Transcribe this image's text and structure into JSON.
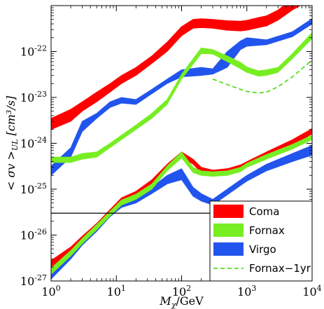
{
  "chart_data": {
    "type": "area",
    "x_scale": "log",
    "y_scale": "log",
    "xlim": [
      1,
      10000
    ],
    "ylim": [
      1e-27,
      1e-21
    ],
    "xlabel_main": "M",
    "xlabel_sub": "χ",
    "xlabel_rest": "/GeV",
    "ylabel": "< σv >",
    "ylabel_sub": "UL",
    "ylabel_units": "[cm³/s]",
    "x_ticks": [
      {
        "value": 1,
        "base": "10",
        "exp": "0"
      },
      {
        "value": 10,
        "base": "10",
        "exp": "1"
      },
      {
        "value": 100,
        "base": "10",
        "exp": "2"
      },
      {
        "value": 1000,
        "base": "10",
        "exp": "3"
      },
      {
        "value": 10000,
        "base": "10",
        "exp": "4"
      }
    ],
    "y_ticks": [
      {
        "value": 1e-27,
        "base": "10",
        "exp": "-27"
      },
      {
        "value": 1e-26,
        "base": "10",
        "exp": "-26"
      },
      {
        "value": 1e-25,
        "base": "10",
        "exp": "-25"
      },
      {
        "value": 1e-24,
        "base": "10",
        "exp": "-24"
      },
      {
        "value": 1e-23,
        "base": "10",
        "exp": "-23"
      },
      {
        "value": 1e-22,
        "base": "10",
        "exp": "-22"
      }
    ],
    "hline": {
      "y": 3e-26,
      "color": "#000000"
    },
    "legend": {
      "position": "bottom-right",
      "entries": [
        {
          "label": "Coma",
          "color": "#ff0000",
          "style": "band"
        },
        {
          "label": "Fornax",
          "color": "#77ee22",
          "style": "band"
        },
        {
          "label": "Virgo",
          "color": "#2255ee",
          "style": "band"
        },
        {
          "label": "Fornax−1yr",
          "color": "#55dd22",
          "style": "dashed"
        }
      ]
    },
    "series": [
      {
        "id": "virgo-upper",
        "color": "#2255ee",
        "type": "band",
        "x": [
          1,
          2,
          3,
          5,
          8,
          12,
          20,
          35,
          60,
          100,
          200,
          300,
          500,
          800,
          1000,
          2000,
          5000,
          10000
        ],
        "lo": [
          2e-25,
          5e-25,
          1.8e-24,
          3.5e-24,
          6e-24,
          7.5e-24,
          7e-24,
          1.2e-23,
          2e-23,
          2.8e-23,
          3e-23,
          3.2e-23,
          4.5e-23,
          1.1e-22,
          1.3e-22,
          1.4e-22,
          2.1e-22,
          4e-22
        ],
        "hi": [
          3.2e-25,
          8e-25,
          3e-24,
          4.5e-24,
          8e-24,
          1e-23,
          9e-24,
          1.5e-23,
          2.5e-23,
          4e-23,
          4.5e-23,
          4.2e-23,
          1e-22,
          1.7e-22,
          2e-22,
          1.8e-22,
          2.7e-22,
          5.2e-22
        ]
      },
      {
        "id": "fornax-upper",
        "color": "#77ee22",
        "type": "band",
        "x": [
          1,
          2,
          3,
          5,
          8,
          12,
          20,
          35,
          60,
          100,
          200,
          300,
          500,
          800,
          1000,
          1500,
          2000,
          3000,
          5000,
          10000
        ],
        "lo": [
          3.8e-25,
          3.8e-25,
          4.5e-25,
          5e-25,
          8e-25,
          1.2e-24,
          2e-24,
          3.5e-24,
          7e-24,
          2.5e-23,
          9e-23,
          8.8e-23,
          6e-23,
          4.2e-23,
          3.5e-23,
          2.9e-23,
          3e-23,
          3.5e-23,
          7e-23,
          1.9e-22
        ],
        "hi": [
          5e-25,
          5e-25,
          6e-25,
          6.5e-25,
          1e-24,
          1.5e-24,
          2.5e-24,
          4.5e-24,
          9e-24,
          3.2e-23,
          1.2e-22,
          1.1e-22,
          8e-23,
          5.8e-23,
          4.6e-23,
          3.8e-23,
          4e-23,
          4.5e-23,
          9e-23,
          2.6e-22
        ]
      },
      {
        "id": "coma-upper",
        "color": "#ff0000",
        "type": "band",
        "x": [
          1,
          2,
          3,
          5,
          8,
          12,
          20,
          35,
          60,
          100,
          150,
          200,
          300,
          500,
          800,
          1000,
          1500,
          2000,
          3000,
          5000,
          10000
        ],
        "lo": [
          2e-24,
          3e-24,
          5e-24,
          8e-24,
          1.3e-23,
          2e-23,
          3e-23,
          5.5e-23,
          1e-22,
          2.2e-22,
          3.2e-22,
          3.3e-22,
          3.2e-22,
          2.9e-22,
          2.8e-22,
          2.9e-22,
          3.3e-22,
          3.6e-22,
          4.8e-22,
          8e-22,
          1.4e-21
        ],
        "hi": [
          3.5e-24,
          5.5e-24,
          8e-24,
          1.3e-23,
          2e-23,
          3e-23,
          4.5e-23,
          8e-23,
          1.6e-22,
          3.5e-22,
          5e-22,
          5.2e-22,
          5e-22,
          4.7e-22,
          4.6e-22,
          4.8e-22,
          5.5e-22,
          6e-22,
          8e-22,
          1.4e-21,
          2.2e-21
        ]
      },
      {
        "id": "virgo-lower",
        "color": "#2255ee",
        "type": "band",
        "x": [
          1,
          2,
          3,
          5,
          8,
          12,
          20,
          35,
          60,
          100,
          150,
          200,
          300,
          500,
          800,
          1000,
          2000,
          5000,
          10000
        ],
        "lo": [
          1.1e-27,
          3e-27,
          6e-27,
          1.2e-26,
          2.5e-26,
          4e-26,
          5e-26,
          8e-26,
          1.3e-25,
          1.6e-25,
          7e-26,
          5.5e-26,
          4.5e-26,
          7.5e-26,
          1.2e-25,
          1.5e-25,
          2.5e-25,
          4e-25,
          5.5e-25
        ],
        "hi": [
          1.7e-27,
          4.2e-27,
          8.5e-27,
          1.7e-26,
          3.4e-26,
          5.5e-26,
          6.8e-26,
          1.1e-25,
          2e-25,
          2.8e-25,
          1.1e-25,
          8e-26,
          6e-26,
          1e-25,
          1.6e-25,
          2e-25,
          3.5e-25,
          6e-25,
          9e-25
        ]
      },
      {
        "id": "coma-lower",
        "color": "#ff0000",
        "type": "band",
        "x": [
          1,
          2,
          3,
          5,
          8,
          12,
          20,
          35,
          60,
          100,
          150,
          200,
          300,
          500,
          800,
          1000,
          2000,
          5000,
          10000
        ],
        "lo": [
          2e-27,
          4e-27,
          7e-27,
          1.3e-26,
          2.8e-26,
          5e-26,
          7e-26,
          1.3e-25,
          2.8e-25,
          5e-25,
          3.5e-25,
          2.3e-25,
          2e-25,
          2.2e-25,
          2.7e-25,
          3.2e-25,
          5e-25,
          9e-25,
          1.6e-24
        ],
        "hi": [
          2.8e-27,
          5.5e-27,
          9.5e-27,
          1.8e-26,
          3.6e-26,
          6.5e-26,
          9e-26,
          1.6e-25,
          3.5e-25,
          6.5e-25,
          4.5e-25,
          3e-25,
          2.6e-25,
          2.8e-25,
          3.4e-25,
          4e-25,
          6.5e-25,
          1.2e-24,
          2.1e-24
        ]
      },
      {
        "id": "fornax-lower",
        "color": "#77ee22",
        "type": "band",
        "x": [
          1,
          2,
          3,
          5,
          8,
          12,
          20,
          35,
          60,
          100,
          150,
          200,
          300,
          500,
          800,
          1000,
          2000,
          5000,
          10000
        ],
        "lo": [
          1.4e-27,
          3.5e-27,
          6.5e-27,
          1.3e-26,
          2.6e-26,
          4.5e-26,
          6e-26,
          1e-25,
          2.5e-25,
          4.8e-25,
          2.3e-25,
          2e-25,
          1.9e-25,
          2e-25,
          2.4e-25,
          3e-25,
          4.5e-25,
          7.5e-25,
          1.2e-24
        ],
        "hi": [
          1.9e-27,
          4.6e-27,
          8.5e-27,
          1.7e-26,
          3.3e-26,
          5.8e-26,
          7.8e-26,
          1.3e-25,
          3.2e-25,
          6.5e-25,
          3e-25,
          2.5e-25,
          2.4e-25,
          2.5e-25,
          3e-25,
          3.7e-25,
          5.7e-25,
          9.5e-25,
          1.5e-24
        ]
      },
      {
        "id": "fornax-1yr",
        "color": "#55dd22",
        "type": "dashed",
        "x": [
          300,
          500,
          800,
          1000,
          1500,
          2000,
          3000,
          5000,
          10000
        ],
        "y": [
          2.5e-23,
          1.9e-23,
          1.5e-23,
          1.35e-23,
          1.25e-23,
          1.3e-23,
          1.7e-23,
          2.8e-23,
          6.5e-23
        ]
      }
    ]
  }
}
